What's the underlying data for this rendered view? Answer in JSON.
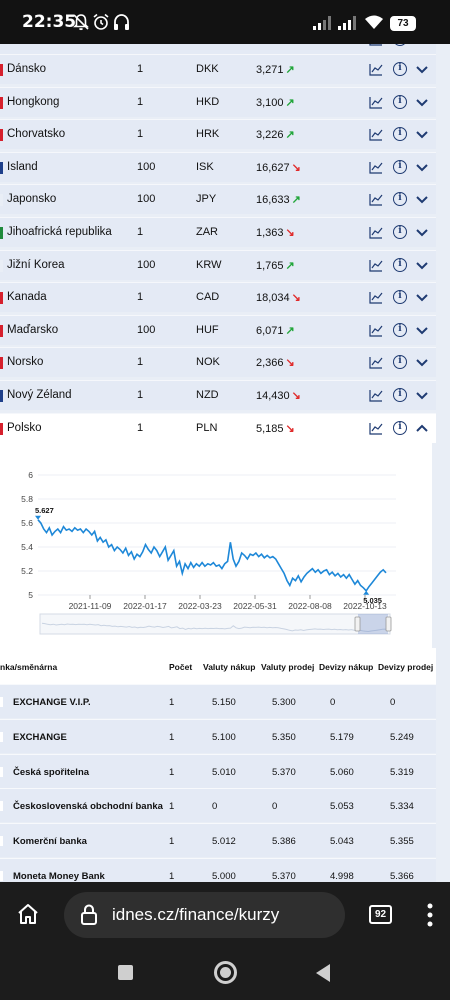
{
  "status_bar": {
    "time": "22:35",
    "battery": "73"
  },
  "currency_rows": [
    {
      "name": "Dánsko",
      "count": "1",
      "code": "DKK",
      "rate": "3,271",
      "trend": "up",
      "flag": "#d6202d"
    },
    {
      "name": "Hongkong",
      "count": "1",
      "code": "HKD",
      "rate": "3,100",
      "trend": "up",
      "flag": "#d6202d"
    },
    {
      "name": "Chorvatsko",
      "count": "1",
      "code": "HRK",
      "rate": "3,226",
      "trend": "up",
      "flag": "#d6202d"
    },
    {
      "name": "Island",
      "count": "100",
      "code": "ISK",
      "rate": "16,627",
      "trend": "down",
      "flag": "#1e3f8a"
    },
    {
      "name": "Japonsko",
      "count": "100",
      "code": "JPY",
      "rate": "16,633",
      "trend": "up",
      "flag": "#e9eef6"
    },
    {
      "name": "Jihoafrická republika",
      "count": "1",
      "code": "ZAR",
      "rate": "1,363",
      "trend": "down",
      "flag": "#1f8a3c"
    },
    {
      "name": "Jižní Korea",
      "count": "100",
      "code": "KRW",
      "rate": "1,765",
      "trend": "up",
      "flag": "#e9eef6"
    },
    {
      "name": "Kanada",
      "count": "1",
      "code": "CAD",
      "rate": "18,034",
      "trend": "down",
      "flag": "#d6202d"
    },
    {
      "name": "Maďarsko",
      "count": "100",
      "code": "HUF",
      "rate": "6,071",
      "trend": "up",
      "flag": "#d6202d"
    },
    {
      "name": "Norsko",
      "count": "1",
      "code": "NOK",
      "rate": "2,366",
      "trend": "down",
      "flag": "#d6202d"
    },
    {
      "name": "Nový Zéland",
      "count": "1",
      "code": "NZD",
      "rate": "14,430",
      "trend": "down",
      "flag": "#1e3f8a"
    },
    {
      "name": "Polsko",
      "count": "1",
      "code": "PLN",
      "rate": "5,185",
      "trend": "down",
      "flag": "#d6202d"
    }
  ],
  "chart_data": {
    "type": "line",
    "series_name": "PLN",
    "y_ticks": [
      "6",
      "5.8",
      "5.6",
      "5.4",
      "5.2",
      "5"
    ],
    "x_ticks": [
      "2021-11-09",
      "2022-01-17",
      "2022-03-23",
      "2022-05-31",
      "2022-08-08",
      "2022-10-13"
    ],
    "ylim": [
      5,
      6
    ],
    "max_label": "5.627",
    "min_label": "5.035",
    "values": [
      5.627,
      5.6,
      5.55,
      5.52,
      5.56,
      5.5,
      5.53,
      5.55,
      5.52,
      5.57,
      5.54,
      5.55,
      5.53,
      5.56,
      5.54,
      5.55,
      5.52,
      5.55,
      5.53,
      5.5,
      5.53,
      5.45,
      5.48,
      5.44,
      5.46,
      5.4,
      5.42,
      5.37,
      5.4,
      5.38,
      5.35,
      5.39,
      5.33,
      5.36,
      5.3,
      5.34,
      5.32,
      5.36,
      5.42,
      5.38,
      5.35,
      5.4,
      5.37,
      5.32,
      5.36,
      5.4,
      5.29,
      5.33,
      5.37,
      5.24,
      5.28,
      5.18,
      5.26,
      5.22,
      5.27,
      5.23,
      5.26,
      5.24,
      5.27,
      5.24,
      5.26,
      5.25,
      5.27,
      5.24,
      5.25,
      5.22,
      5.26,
      5.28,
      5.44,
      5.3,
      5.24,
      5.28,
      5.35,
      5.33,
      5.3,
      5.34,
      5.33,
      5.35,
      5.32,
      5.34,
      5.31,
      5.33,
      5.31,
      5.32,
      5.3,
      5.26,
      5.22,
      5.18,
      5.12,
      5.08,
      5.14,
      5.12,
      5.16,
      5.11,
      5.15,
      5.18,
      5.2,
      5.22,
      5.19,
      5.21,
      5.18,
      5.2,
      5.21,
      5.17,
      5.19,
      5.16,
      5.18,
      5.15,
      5.17,
      5.14,
      5.17,
      5.13,
      5.09,
      5.12,
      5.08,
      5.06,
      5.035,
      5.07,
      5.1,
      5.13,
      5.16,
      5.19,
      5.21,
      5.185
    ]
  },
  "bank_table": {
    "headers": [
      "nka/směnárna",
      "Počet",
      "Valuty nákup",
      "Valuty prodej",
      "Devizy nákup",
      "Devizy prodej"
    ],
    "rows": [
      {
        "name": "EXCHANGE V.I.P.",
        "count": "1",
        "vn": "5.150",
        "vp": "5.300",
        "dn": "0",
        "dp": "0"
      },
      {
        "name": "EXCHANGE",
        "count": "1",
        "vn": "5.100",
        "vp": "5.350",
        "dn": "5.179",
        "dp": "5.249"
      },
      {
        "name": "Česká spořitelna",
        "count": "1",
        "vn": "5.010",
        "vp": "5.370",
        "dn": "5.060",
        "dp": "5.319"
      },
      {
        "name": "Československá obchodní banka",
        "count": "1",
        "vn": "0",
        "vp": "0",
        "dn": "5.053",
        "dp": "5.334"
      },
      {
        "name": "Komerční banka",
        "count": "1",
        "vn": "5.012",
        "vp": "5.386",
        "dn": "5.043",
        "dp": "5.355"
      },
      {
        "name": "Moneta Money Bank",
        "count": "1",
        "vn": "5.000",
        "vp": "5.370",
        "dn": "4.998",
        "dp": "5.366"
      }
    ]
  },
  "browser": {
    "url": "idnes.cz/finance/kurzy",
    "tab_count": "92"
  }
}
